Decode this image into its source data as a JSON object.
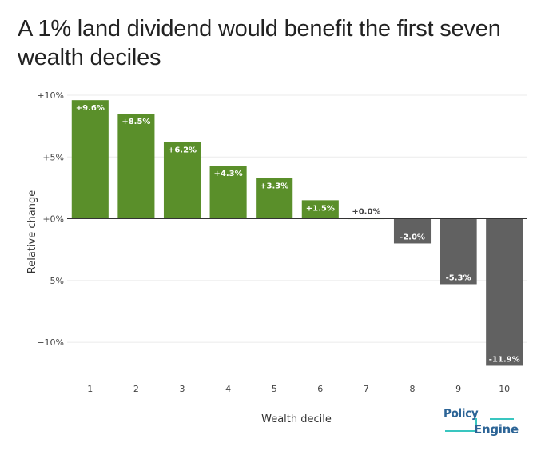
{
  "title": "A 1% land dividend would benefit the first seven wealth deciles",
  "logo": {
    "line1": "Policy",
    "line2": "Engine"
  },
  "colors": {
    "positive": "#5a8f2a",
    "negative": "#616161",
    "zero": "#5a8f2a"
  },
  "chart_data": {
    "type": "bar",
    "categories": [
      "1",
      "2",
      "3",
      "4",
      "5",
      "6",
      "7",
      "8",
      "9",
      "10"
    ],
    "values": [
      9.6,
      8.5,
      6.2,
      4.3,
      3.3,
      1.5,
      0.0,
      -2.0,
      -5.3,
      -11.9
    ],
    "labels": [
      "+9.6%",
      "+8.5%",
      "+6.2%",
      "+4.3%",
      "+3.3%",
      "+1.5%",
      "+0.0%",
      "-2.0%",
      "-5.3%",
      "-11.9%"
    ],
    "xlabel": "Wealth decile",
    "ylabel": "Relative change",
    "ylim": [
      -12,
      10
    ],
    "yticks": [
      10,
      5,
      0,
      -5,
      -10
    ],
    "ytick_labels": [
      "+10%",
      "+5%",
      "+0%",
      "−5%",
      "−10%"
    ],
    "grid": true
  }
}
